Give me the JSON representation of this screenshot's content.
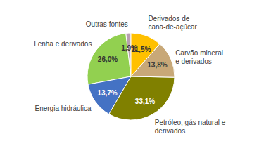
{
  "chart_data": {
    "type": "pie",
    "categories": [
      "Outras fontes",
      "Lenha e derivados",
      "Energia hidráulica",
      "Petróleo, gás natural e\nderivados",
      "Carvão mineral\ne derivados",
      "Derivados de\ncana-de-açúcar"
    ],
    "values": [
      1.9,
      26.0,
      13.7,
      33.1,
      13.8,
      11.5
    ],
    "value_labels": [
      "1,9%",
      "26,0%",
      "13,7%",
      "33,1%",
      "13,8%",
      "11,5%"
    ],
    "colors": [
      "#b8a0b0",
      "#92d050",
      "#4472c4",
      "#808000",
      "#c8a878",
      "#ffc000"
    ],
    "data_labels": true
  }
}
